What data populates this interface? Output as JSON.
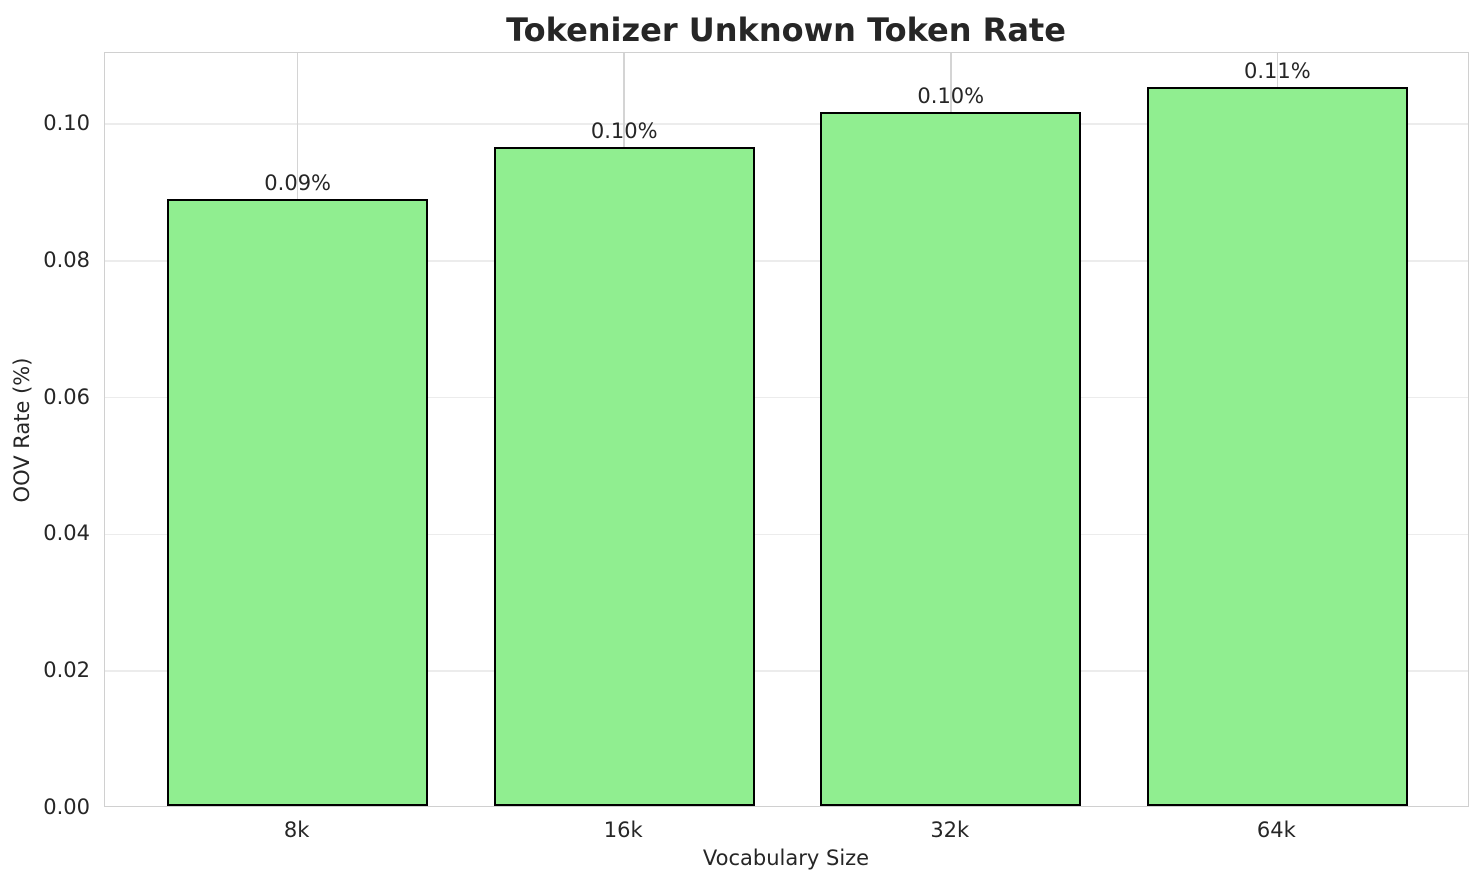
{
  "chart_data": {
    "type": "bar",
    "title": "Tokenizer Unknown Token Rate",
    "xlabel": "Vocabulary Size",
    "ylabel": "OOV Rate (%)",
    "categories": [
      "8k",
      "16k",
      "32k",
      "64k"
    ],
    "values": [
      0.0888,
      0.0963,
      0.1015,
      0.1051
    ],
    "bar_labels": [
      "0.09%",
      "0.10%",
      "0.10%",
      "0.11%"
    ],
    "ylim": [
      0,
      0.1104
    ],
    "yticks": [
      0.0,
      0.02,
      0.04,
      0.06,
      0.08,
      0.1
    ],
    "ytick_labels": [
      "0.00",
      "0.02",
      "0.04",
      "0.06",
      "0.08",
      "0.10"
    ],
    "grid": true,
    "legend": null,
    "colors": {
      "bar_fill": "#90EE90",
      "bar_edge": "#000000",
      "grid_horizontal": "#ececec",
      "grid_vertical": "#d4d4d4",
      "spine": "#d0d0d0",
      "text": "#262626",
      "background": "#ffffff"
    }
  }
}
